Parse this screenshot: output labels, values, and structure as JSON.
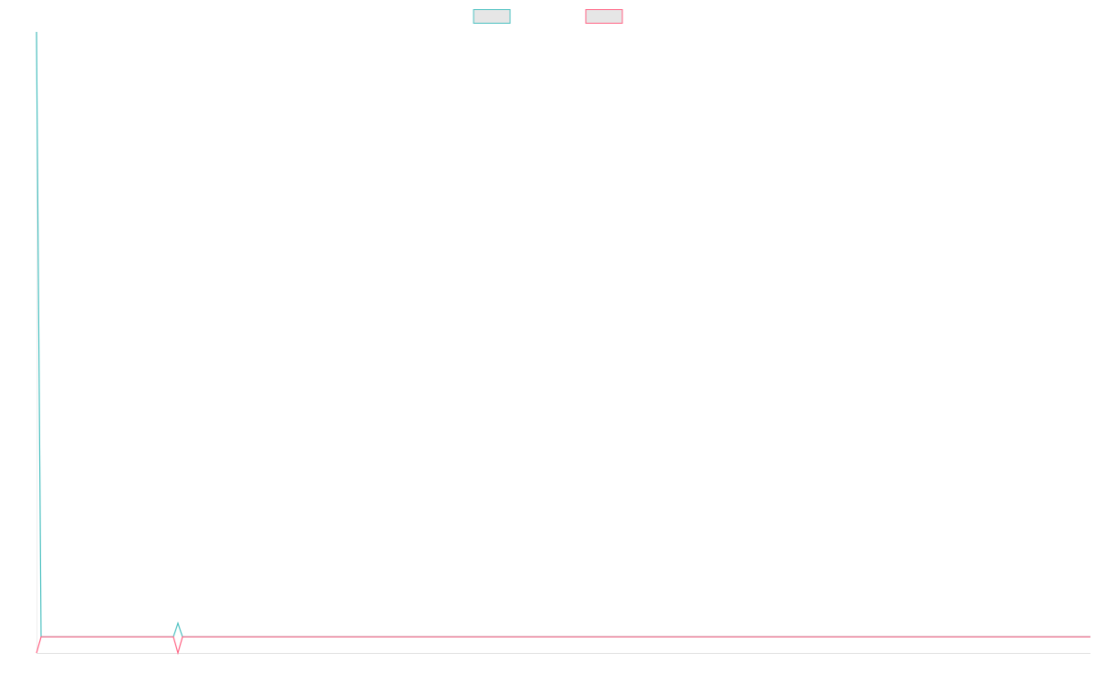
{
  "chart_data": {
    "type": "line",
    "x": [
      0,
      1,
      30,
      31,
      32,
      231
    ],
    "xlim": [
      0,
      231
    ],
    "ylim": [
      0,
      100
    ],
    "series": [
      {
        "color": "#4bc0c0",
        "values": [
          100,
          2.6,
          2.6,
          4.8,
          2.6,
          2.6
        ]
      },
      {
        "color": "#ff6384",
        "values": [
          0,
          2.6,
          2.6,
          0,
          2.6,
          2.6
        ]
      }
    ],
    "legend": "top"
  }
}
